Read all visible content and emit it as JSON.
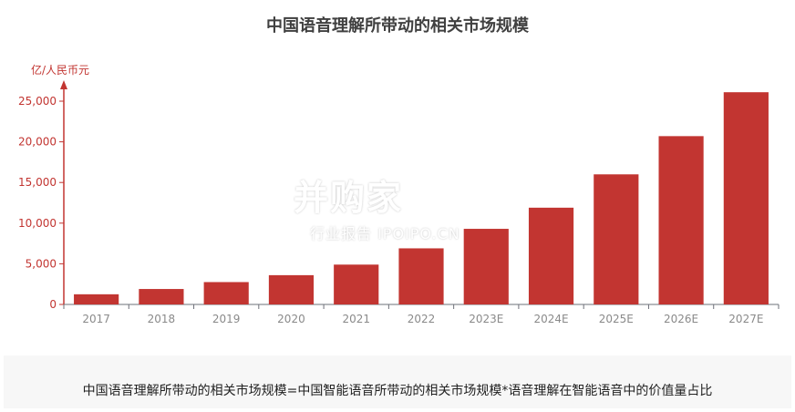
{
  "chart_data": {
    "type": "bar",
    "title": "中国语音理解所带动的相关市场规模",
    "ylabel": "亿/人民币元",
    "categories": [
      "2017",
      "2018",
      "2019",
      "2020",
      "2021",
      "2022",
      "2023E",
      "2024E",
      "2025E",
      "2026E",
      "2027E"
    ],
    "values": [
      1250,
      1900,
      2750,
      3600,
      4900,
      6900,
      9300,
      11900,
      16000,
      20700,
      26100
    ],
    "ylim": [
      0,
      25000
    ],
    "yticks": [
      "0",
      "5,000",
      "10,000",
      "15,000",
      "20,000",
      "25,000"
    ],
    "ytick_values": [
      0,
      5000,
      10000,
      15000,
      20000,
      25000
    ],
    "color": "#c23531",
    "grid": false
  },
  "watermark": {
    "main": "并购家",
    "sub": "行业报告 IPOIPO.CN"
  },
  "footer": {
    "formula": "中国语音理解所带动的相关市场规模=中国智能语音所带动的相关市场规模*语音理解在智能语音中的价值量占比"
  }
}
